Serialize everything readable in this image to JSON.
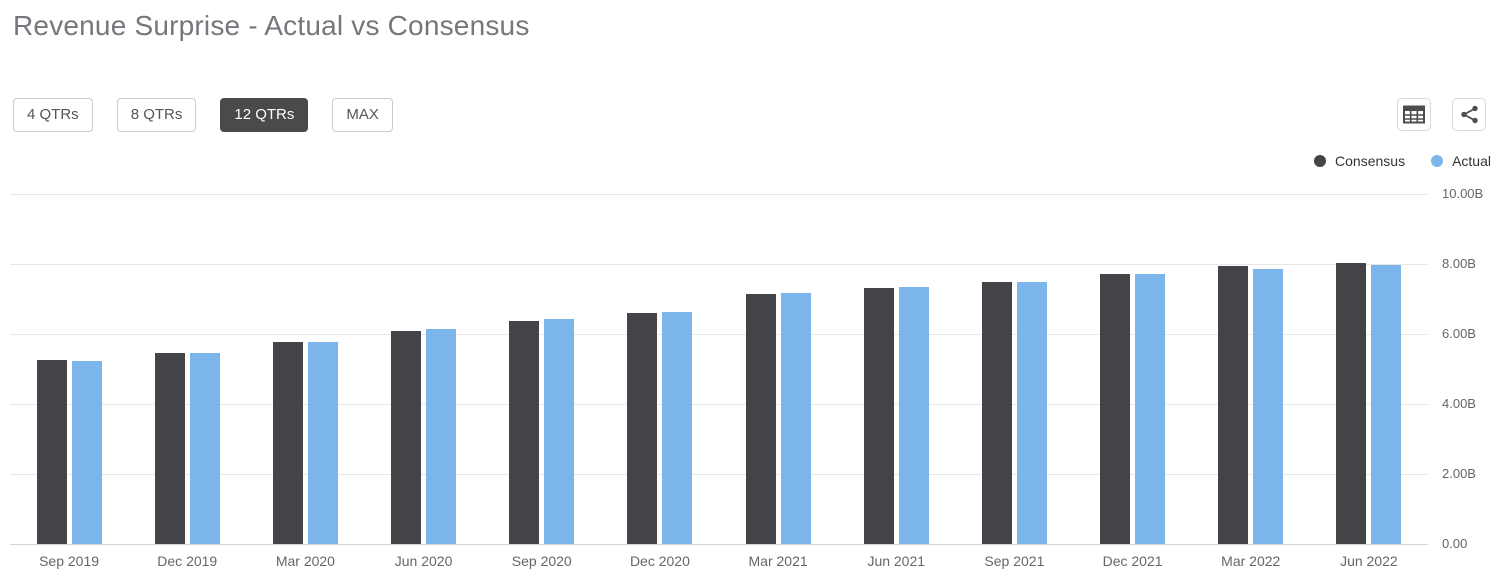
{
  "title": "Revenue Surprise - Actual vs Consensus",
  "toolbar": {
    "range_buttons": [
      {
        "label": "4 QTRs",
        "selected": false
      },
      {
        "label": "8 QTRs",
        "selected": false
      },
      {
        "label": "12 QTRs",
        "selected": true
      },
      {
        "label": "MAX",
        "selected": false
      }
    ],
    "icon_buttons": [
      "table-icon",
      "share-icon"
    ]
  },
  "legend": {
    "items": [
      {
        "label": "Consensus",
        "color": "#434348"
      },
      {
        "label": "Actual",
        "color": "#7cb5ec"
      }
    ]
  },
  "colors": {
    "consensus": "#434348",
    "actual": "#7cb5ec",
    "selected_button_bg": "#4a4a4a",
    "grid_line": "#e7e7e7",
    "axis_line": "#d6d6d6",
    "title_text": "#74787c",
    "axis_text": "#666666"
  },
  "chart_data": {
    "type": "bar",
    "title": "Revenue Surprise - Actual vs Consensus",
    "categories": [
      "Sep 2019",
      "Dec 2019",
      "Mar 2020",
      "Jun 2020",
      "Sep 2020",
      "Dec 2020",
      "Mar 2021",
      "Jun 2021",
      "Sep 2021",
      "Dec 2021",
      "Mar 2022",
      "Jun 2022"
    ],
    "series": [
      {
        "name": "Consensus",
        "color": "#434348",
        "values": [
          5.25,
          5.45,
          5.76,
          6.08,
          6.38,
          6.6,
          7.13,
          7.32,
          7.48,
          7.71,
          7.93,
          8.04
        ]
      },
      {
        "name": "Actual",
        "color": "#7cb5ec",
        "values": [
          5.24,
          5.47,
          5.77,
          6.15,
          6.44,
          6.64,
          7.16,
          7.34,
          7.48,
          7.71,
          7.87,
          7.97
        ]
      }
    ],
    "xlabel": "",
    "ylabel": "",
    "ylim": [
      0,
      10
    ],
    "yticks": [
      {
        "value": 0,
        "label": "0.00"
      },
      {
        "value": 2,
        "label": "2.00B"
      },
      {
        "value": 4,
        "label": "4.00B"
      },
      {
        "value": 6,
        "label": "6.00B"
      },
      {
        "value": 8,
        "label": "8.00B"
      },
      {
        "value": 10,
        "label": "10.00B"
      }
    ],
    "grid": true,
    "legend_position": "top-right",
    "y_axis_side": "right"
  }
}
